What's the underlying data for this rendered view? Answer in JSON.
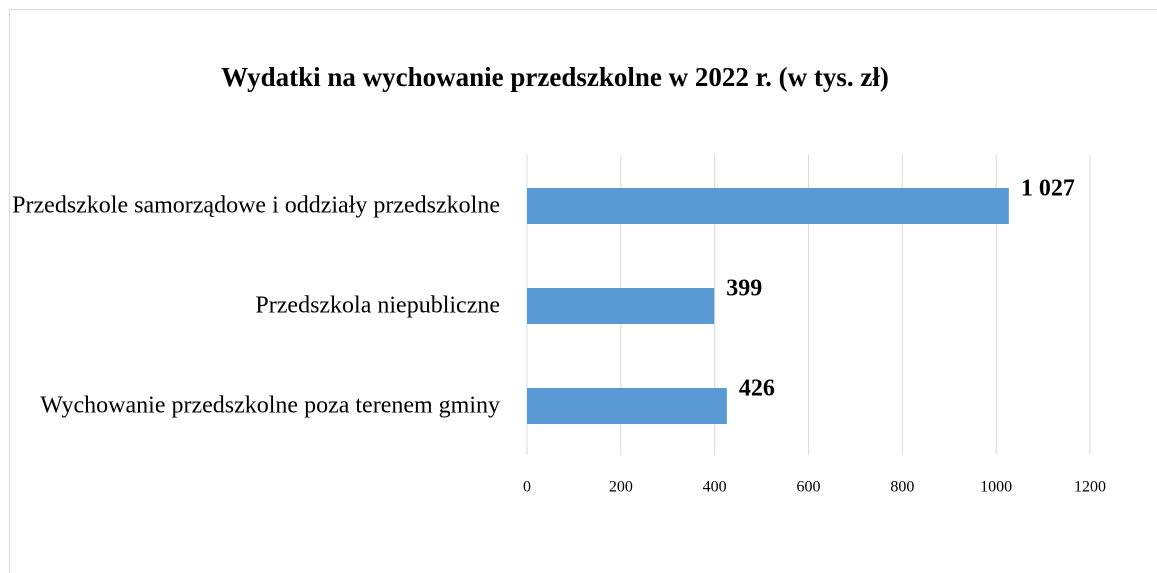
{
  "chart_data": {
    "type": "barh",
    "title": "Wydatki na wychowanie przedszkolne w 2022 r.  (w tys. zł)",
    "categories": [
      "Przedszkole samorządowe i oddziały przedszkolne",
      "Przedszkola niepubliczne",
      "Wychowanie przedszkolne poza terenem gminy"
    ],
    "values": [
      1027,
      399,
      426
    ],
    "value_labels": [
      "1 027",
      "399",
      "426"
    ],
    "color": "#5b9bd5",
    "xlim": [
      0,
      1200
    ],
    "xticks": [
      0,
      200,
      400,
      600,
      800,
      1000,
      1200
    ],
    "grid": true
  }
}
